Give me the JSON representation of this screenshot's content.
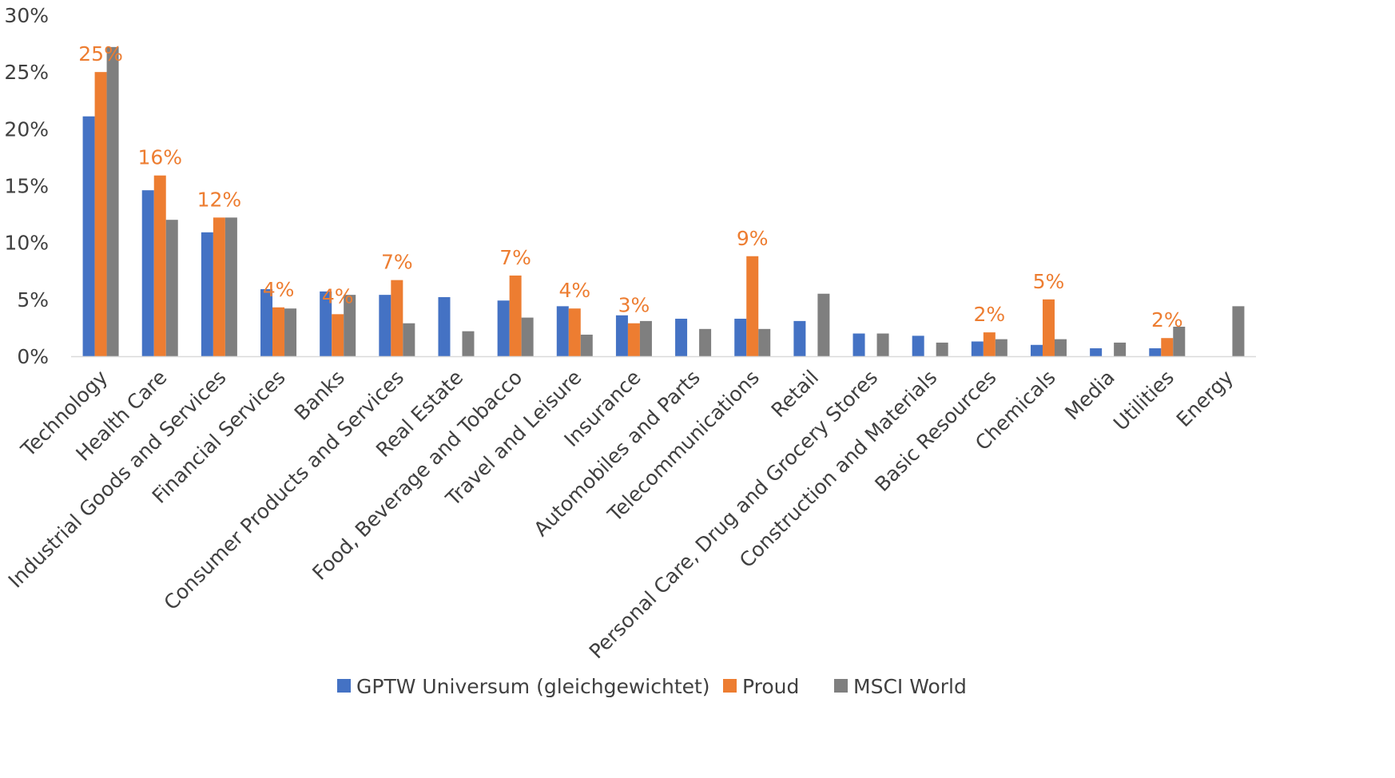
{
  "chart_data": {
    "type": "bar",
    "categories": [
      "Technology",
      "Health Care",
      "Industrial Goods and Services",
      "Financial Services",
      "Banks",
      "Consumer Products and Services",
      "Real Estate",
      "Food, Beverage and Tobacco",
      "Travel and Leisure",
      "Insurance",
      "Automobiles and Parts",
      "Telecommunications",
      "Retail",
      "Personal Care, Drug and Grocery Stores",
      "Construction and Materials",
      "Basic Resources",
      "Chemicals",
      "Media",
      "Utilities",
      "Energy"
    ],
    "series": [
      {
        "name": "GPTW Universum (gleichgewichtet)",
        "color": "#4472C4",
        "values": [
          21.1,
          14.6,
          10.9,
          5.9,
          5.7,
          5.4,
          5.2,
          4.9,
          4.4,
          3.6,
          3.3,
          3.3,
          3.1,
          2.0,
          1.8,
          1.3,
          1.0,
          0.7,
          0.7,
          0.0
        ]
      },
      {
        "name": "Proud",
        "color": "#ED7D31",
        "values": [
          25.0,
          15.9,
          12.2,
          4.3,
          3.7,
          6.7,
          0.0,
          7.1,
          4.2,
          2.9,
          0.0,
          8.8,
          0.0,
          0.0,
          0.0,
          2.1,
          5.0,
          0.0,
          1.6,
          0.0
        ]
      },
      {
        "name": "MSCI World",
        "color": "#7F7F7F",
        "values": [
          27.2,
          12.0,
          12.2,
          4.2,
          5.4,
          2.9,
          2.2,
          3.4,
          1.9,
          3.1,
          2.4,
          2.4,
          5.5,
          2.0,
          1.2,
          1.5,
          1.5,
          1.2,
          2.6,
          4.4
        ]
      }
    ],
    "data_labels": [
      "25%",
      "16%",
      "12%",
      "4%",
      "4%",
      "7%",
      "",
      "7%",
      "4%",
      "3%",
      "",
      "9%",
      "",
      "",
      "",
      "2%",
      "5%",
      "",
      "2%",
      ""
    ],
    "yticks": [
      "0%",
      "5%",
      "10%",
      "15%",
      "20%",
      "25%",
      "30%"
    ],
    "ylim": [
      0,
      30
    ],
    "title": "",
    "xlabel": "",
    "ylabel": "",
    "grid": false,
    "legend_position": "bottom"
  }
}
